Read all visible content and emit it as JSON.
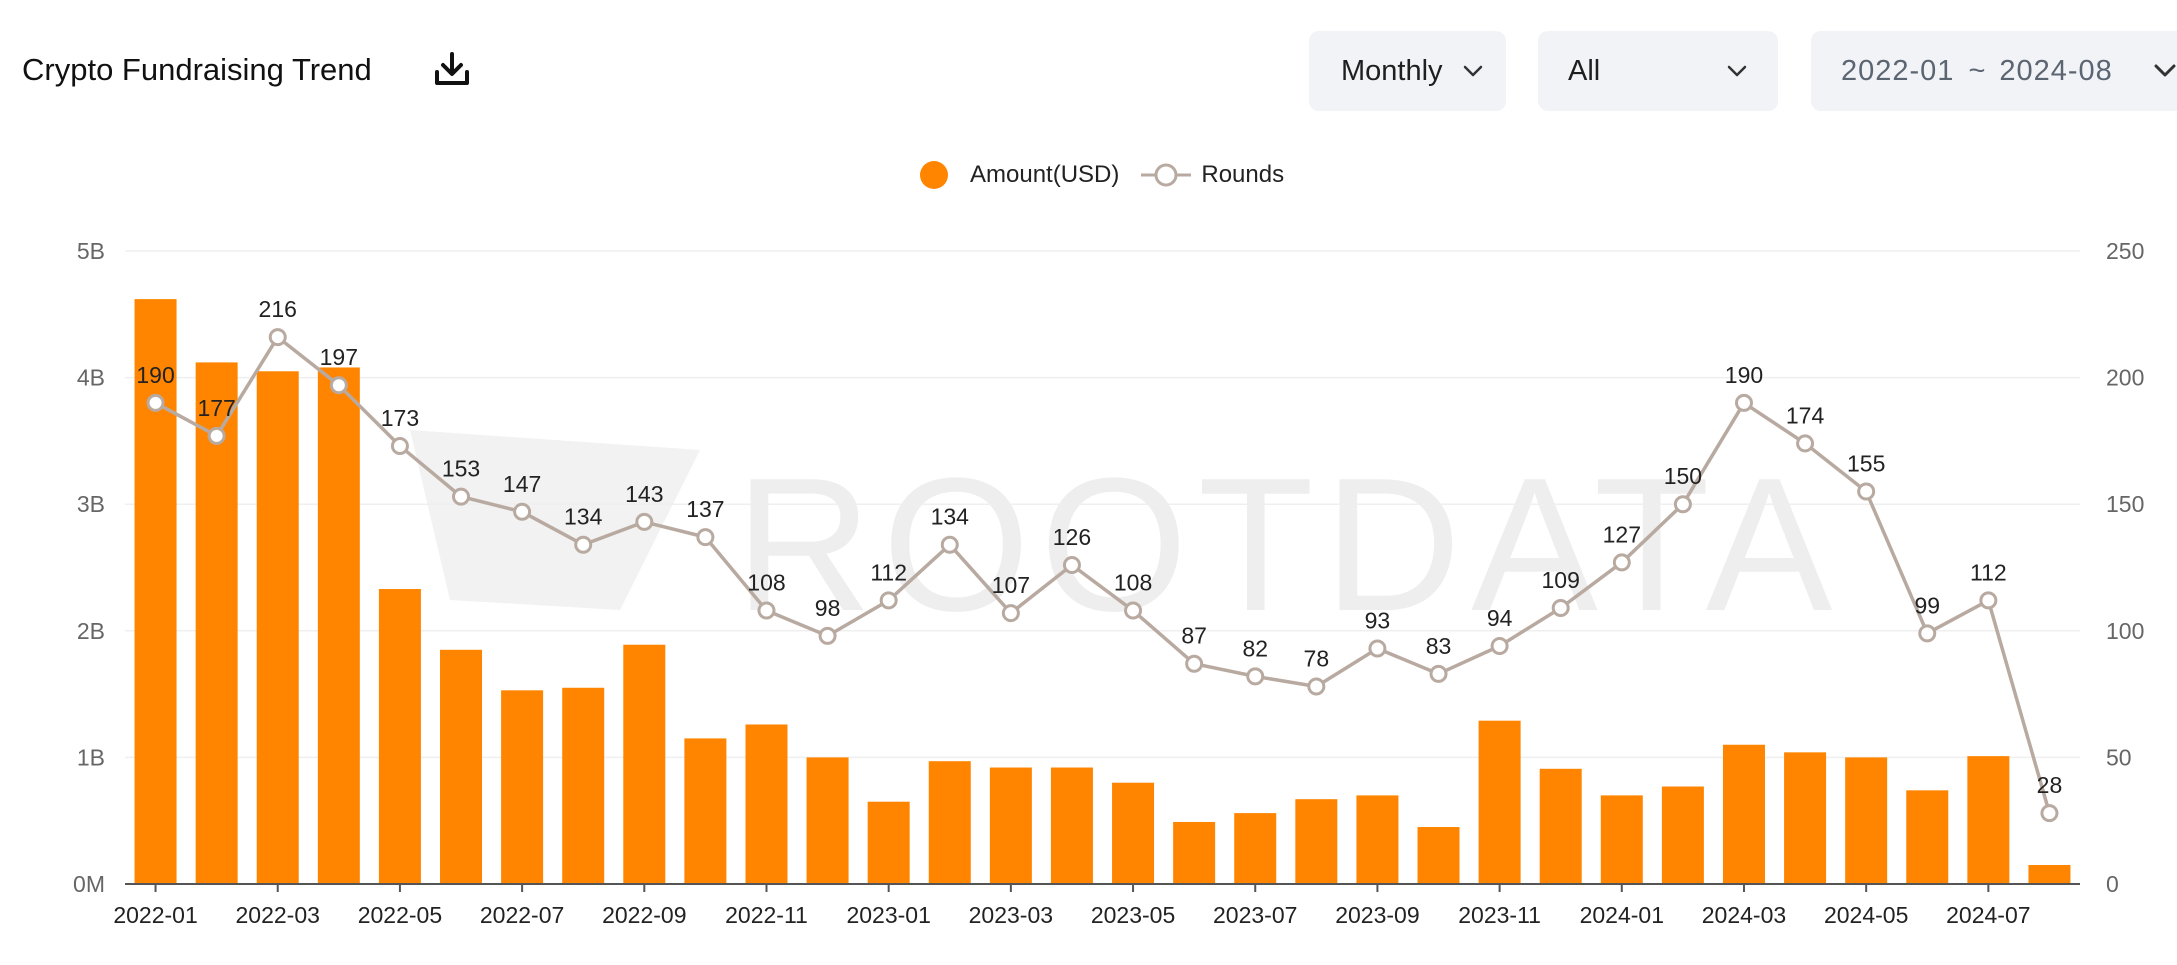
{
  "header": {
    "title": "Crypto Fundraising Trend",
    "download_icon": "download-icon"
  },
  "controls": {
    "period": "Monthly",
    "category": "All",
    "range_start": "2022-01",
    "range_sep": "~",
    "range_end": "2024-08",
    "chevron_icon": "chevron-down-icon"
  },
  "legend": {
    "amount": "Amount(USD)",
    "rounds": "Rounds"
  },
  "watermark": "ROOTDATA",
  "colors": {
    "bar": "#ff8500",
    "line": "#b8aaa0",
    "grid": "#efefef",
    "axis": "#666666"
  },
  "chart_data": {
    "type": "bar",
    "categories": [
      "2022-01",
      "2022-02",
      "2022-03",
      "2022-04",
      "2022-05",
      "2022-06",
      "2022-07",
      "2022-08",
      "2022-09",
      "2022-10",
      "2022-11",
      "2022-12",
      "2023-01",
      "2023-02",
      "2023-03",
      "2023-04",
      "2023-05",
      "2023-06",
      "2023-07",
      "2023-08",
      "2023-09",
      "2023-10",
      "2023-11",
      "2023-12",
      "2024-01",
      "2024-02",
      "2024-03",
      "2024-04",
      "2024-05",
      "2024-06",
      "2024-07",
      "2024-08"
    ],
    "x_tick_labels": [
      "2022-01",
      "2022-03",
      "2022-05",
      "2022-07",
      "2022-09",
      "2022-11",
      "2023-01",
      "2023-03",
      "2023-05",
      "2023-07",
      "2023-09",
      "2023-11",
      "2024-01",
      "2024-03",
      "2024-05",
      "2024-07"
    ],
    "series": [
      {
        "name": "Amount(USD)",
        "kind": "bar",
        "axis": "left",
        "values": [
          4.62,
          4.12,
          4.05,
          4.08,
          2.33,
          1.85,
          1.53,
          1.55,
          1.89,
          1.15,
          1.26,
          1.0,
          0.65,
          0.97,
          0.92,
          0.92,
          0.8,
          0.49,
          0.56,
          0.67,
          0.7,
          0.45,
          1.29,
          0.91,
          0.7,
          0.77,
          1.1,
          1.04,
          1.0,
          0.74,
          1.01,
          0.15
        ]
      },
      {
        "name": "Rounds",
        "kind": "line",
        "axis": "right",
        "values": [
          190,
          177,
          216,
          197,
          173,
          153,
          147,
          134,
          143,
          137,
          108,
          98,
          112,
          134,
          107,
          126,
          108,
          87,
          82,
          78,
          93,
          83,
          94,
          109,
          127,
          150,
          190,
          174,
          155,
          99,
          112,
          28
        ]
      }
    ],
    "y_left": {
      "ylim": [
        0,
        5
      ],
      "ticks": [
        "0M",
        "1B",
        "2B",
        "3B",
        "4B",
        "5B"
      ]
    },
    "y_right": {
      "ylim": [
        0,
        250
      ],
      "ticks": [
        "0",
        "50",
        "100",
        "150",
        "200",
        "250"
      ]
    },
    "xlabel": "",
    "ylabel": "",
    "title": "",
    "legend_position": "top-center",
    "grid": true
  }
}
